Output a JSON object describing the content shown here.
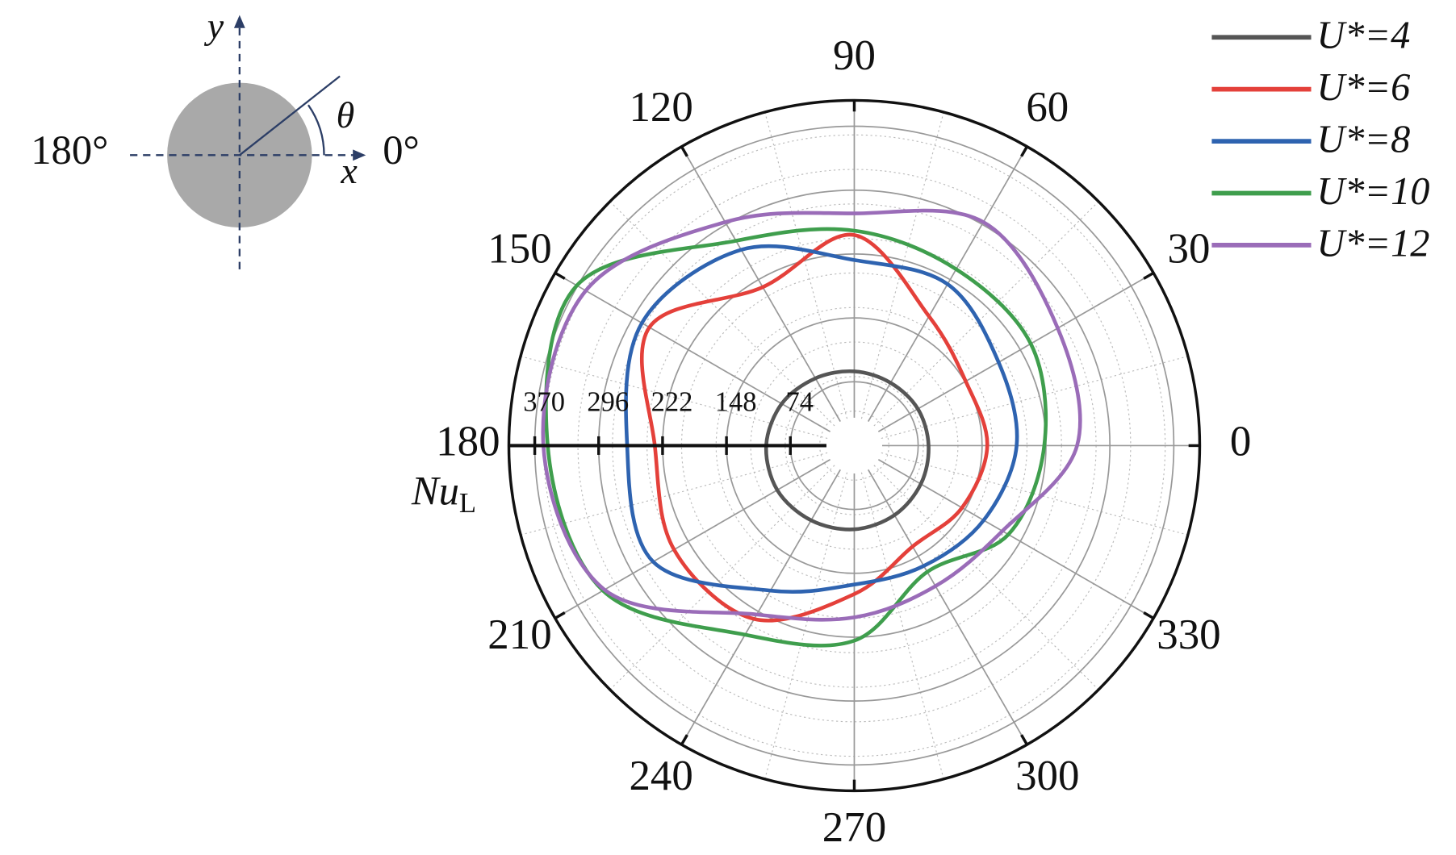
{
  "chart_data": {
    "type": "polar",
    "theta": [
      0,
      30,
      60,
      90,
      120,
      150,
      180,
      210,
      240,
      270,
      300,
      330
    ],
    "thetaticks": [
      0,
      30,
      60,
      90,
      120,
      150,
      180,
      210,
      240,
      270,
      300,
      330
    ],
    "rlim": [
      0,
      400
    ],
    "rticks": [
      74,
      148,
      222,
      296,
      370
    ],
    "r_label": {
      "main": "Nu",
      "sub": "L"
    },
    "grid": true,
    "legend": "upper right",
    "series": [
      {
        "name": "U*=4",
        "color": "#555555",
        "values": [
          86,
          85,
          84,
          86,
          90,
          97,
          102,
          103,
          100,
          97,
          93,
          89
        ]
      },
      {
        "name": "U*=6",
        "color": "#e4403a",
        "values": [
          154,
          149,
          173,
          244,
          212,
          274,
          231,
          241,
          232,
          172,
          135,
          144
        ]
      },
      {
        "name": "U*=8",
        "color": "#2e63b0",
        "values": [
          188,
          193,
          216,
          215,
          262,
          284,
          263,
          269,
          194,
          161,
          161,
          173
        ]
      },
      {
        "name": "U*=10",
        "color": "#3f9e4d",
        "values": [
          220,
          236,
          236,
          249,
          274,
          371,
          355,
          336,
          253,
          226,
          169,
          206
        ]
      },
      {
        "name": "U*=12",
        "color": "#9a6cb8",
        "values": [
          258,
          272,
          299,
          269,
          299,
          359,
          360,
          334,
          226,
          199,
          188,
          198
        ]
      }
    ]
  },
  "inset": {
    "y_axis": "y",
    "x_axis": "x",
    "angle": "θ",
    "left": "180°",
    "right": "0°"
  }
}
